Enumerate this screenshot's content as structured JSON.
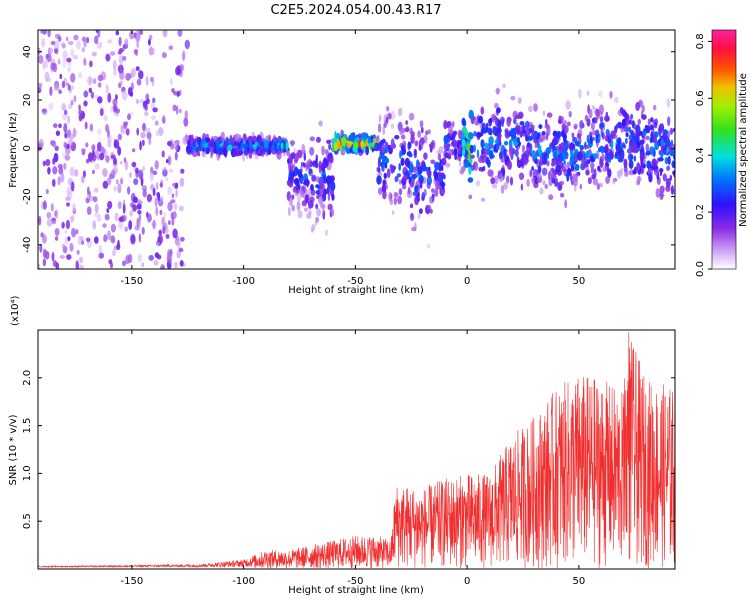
{
  "title": "C2E5.2024.054.00.43.R17",
  "chart_data": [
    {
      "type": "heatmap",
      "xlabel": "Height of straight line (km)",
      "ylabel": "Frequency (Hz)",
      "xlim": [
        -192,
        93
      ],
      "ylim": [
        -50,
        49
      ],
      "xticks": [
        -150,
        -100,
        -50,
        0,
        50
      ],
      "yticks": [
        -40,
        -20,
        0,
        20,
        40
      ],
      "colorbar": {
        "label": "Normalized spectral amplitude",
        "range": [
          0.0,
          0.84
        ],
        "ticks": [
          "0.0",
          "0.2",
          "0.4",
          "0.6",
          "0.8"
        ],
        "tick_values": [
          0.0,
          0.2,
          0.4,
          0.6,
          0.8
        ],
        "colormap": "white-purple-blue-cyan-green-yellow-red-magenta"
      },
      "features": [
        {
          "x_range": [
            -192,
            -125
          ],
          "freq_range": [
            -50,
            49
          ],
          "amplitude": "0.05-0.15 (noise)"
        },
        {
          "x_range": [
            -120,
            -80
          ],
          "freq_center": 0,
          "amplitude_max": 0.4
        },
        {
          "x_range": [
            -60,
            -40
          ],
          "freq_center": 2,
          "amplitude_max": 0.75
        },
        {
          "x_range": [
            -2,
            2
          ],
          "freq_center": 2,
          "amplitude_max": 0.6
        },
        {
          "x_range": [
            0,
            93
          ],
          "freq_range": [
            -30,
            30
          ],
          "amplitude": "0.15-0.35"
        }
      ]
    },
    {
      "type": "line",
      "xlabel": "Height of straight line (km)",
      "ylabel": "SNR (10 * v/v)",
      "y_scale_label": "(x10⁴)",
      "xlim": [
        -192,
        93
      ],
      "ylim": [
        0,
        2.5
      ],
      "xticks": [
        -150,
        -100,
        -50,
        0,
        50
      ],
      "yticks": [
        0.5,
        1.0,
        1.5,
        2.0
      ],
      "ytick_labels": [
        "0.5",
        "1.0",
        "1.5",
        "2.0"
      ],
      "color": "#f03030",
      "envelope_x": [
        -192,
        -150,
        -120,
        -100,
        -90,
        -80,
        -60,
        -50,
        -40,
        -34,
        -32,
        -20,
        -10,
        0,
        10,
        20,
        30,
        40,
        50,
        60,
        70,
        72,
        80,
        93
      ],
      "envelope_y": [
        0.03,
        0.04,
        0.05,
        0.1,
        0.2,
        0.2,
        0.3,
        0.35,
        0.35,
        0.3,
        0.9,
        0.85,
        0.95,
        1.0,
        1.0,
        1.4,
        1.6,
        1.9,
        2.05,
        2.0,
        1.85,
        2.5,
        2.0,
        1.9
      ]
    }
  ]
}
